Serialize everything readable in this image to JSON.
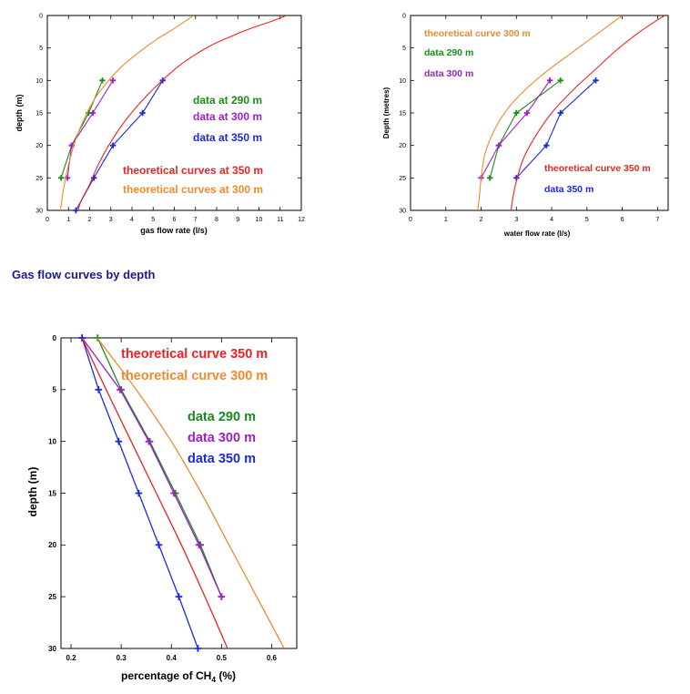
{
  "page": {
    "heading": "Gas flow curves by depth"
  },
  "colors": {
    "theory350": "#ee2222",
    "theory300": "#f08a2c",
    "d290": "#1a8c1a",
    "d300": "#a020c8",
    "d350": "#1a2ae0",
    "axis": "#000000"
  },
  "chart_data": [
    {
      "id": "gas",
      "type": "line",
      "xlabel": "gas flow rate (l/s)",
      "ylabel": "depth (m)",
      "xlim": [
        0,
        12
      ],
      "ylim": [
        0,
        30
      ],
      "y_inverted": true,
      "grid": false,
      "xticks": [
        0,
        1,
        2,
        3,
        4,
        5,
        6,
        7,
        8,
        9,
        10,
        11,
        12
      ],
      "yticks": [
        0,
        5,
        10,
        15,
        20,
        25,
        30
      ],
      "series": [
        {
          "key": "d290",
          "name": "data at 290 m",
          "marker": true,
          "points": [
            [
              2.6,
              10
            ],
            [
              1.95,
              15
            ],
            [
              1.15,
              20
            ],
            [
              0.65,
              25
            ]
          ]
        },
        {
          "key": "d300",
          "name": "data at 300 m",
          "marker": true,
          "points": [
            [
              3.1,
              10
            ],
            [
              2.15,
              15
            ],
            [
              1.15,
              20
            ],
            [
              0.95,
              25
            ]
          ]
        },
        {
          "key": "d350",
          "name": "data at 350 m",
          "marker": true,
          "points": [
            [
              5.45,
              10
            ],
            [
              4.5,
              15
            ],
            [
              3.1,
              20
            ],
            [
              2.2,
              25
            ],
            [
              1.35,
              30
            ]
          ]
        },
        {
          "key": "theory350",
          "name": "theoretical curves at 350 m",
          "marker": false,
          "points": [
            [
              11.3,
              0
            ],
            [
              10.5,
              1
            ],
            [
              9.6,
              2
            ],
            [
              8.7,
              3.2
            ],
            [
              7.8,
              4.5
            ],
            [
              7.0,
              6
            ],
            [
              6.2,
              7.8
            ],
            [
              5.5,
              9.8
            ],
            [
              4.8,
              12
            ],
            [
              4.1,
              14.5
            ],
            [
              3.5,
              17
            ],
            [
              2.9,
              20
            ],
            [
              2.4,
              23
            ],
            [
              2.0,
              26
            ],
            [
              1.6,
              28.5
            ],
            [
              1.45,
              30
            ]
          ]
        },
        {
          "key": "theory300",
          "name": "theoretical curves at 300 m",
          "marker": false,
          "points": [
            [
              6.9,
              0
            ],
            [
              6.1,
              1.8
            ],
            [
              5.2,
              3.6
            ],
            [
              4.4,
              5.5
            ],
            [
              3.6,
              7.6
            ],
            [
              2.9,
              10
            ],
            [
              2.3,
              12.5
            ],
            [
              1.8,
              15.5
            ],
            [
              1.35,
              19
            ],
            [
              1.0,
              23
            ],
            [
              0.75,
              27
            ],
            [
              0.62,
              30
            ]
          ]
        }
      ],
      "labels": [
        {
          "key": "d290",
          "text": "data at 290 m"
        },
        {
          "key": "d300",
          "text": "data at 300 m"
        },
        {
          "key": "d350",
          "text": "data at 350 m"
        },
        {
          "key": "theory350",
          "text": "theoretical curves at 350 m"
        },
        {
          "key": "theory300",
          "text": "theoretical curves at 300 m"
        }
      ]
    },
    {
      "id": "water",
      "type": "line",
      "xlabel": "water flow rate (l/s)",
      "ylabel": "Depth (metres)",
      "xlim": [
        0,
        7.3
      ],
      "ylim": [
        0,
        30
      ],
      "y_inverted": true,
      "grid": false,
      "xticks": [
        0,
        1,
        2,
        3,
        4,
        5,
        6,
        7
      ],
      "yticks": [
        0,
        5,
        10,
        15,
        20,
        25,
        30
      ],
      "series": [
        {
          "key": "d290",
          "name": "data 290 m",
          "marker": true,
          "points": [
            [
              4.25,
              10
            ],
            [
              3.0,
              15
            ],
            [
              2.5,
              20
            ],
            [
              2.25,
              25
            ]
          ]
        },
        {
          "key": "d300",
          "name": "data 300 m",
          "marker": true,
          "points": [
            [
              3.95,
              10
            ],
            [
              3.3,
              15
            ],
            [
              2.5,
              20
            ],
            [
              2.0,
              25
            ]
          ]
        },
        {
          "key": "d350",
          "name": "data 350 m",
          "marker": true,
          "points": [
            [
              5.25,
              10
            ],
            [
              4.25,
              15
            ],
            [
              3.85,
              20
            ],
            [
              3.0,
              25
            ]
          ]
        },
        {
          "key": "theory350",
          "name": "theoretical curve 350 m",
          "marker": false,
          "points": [
            [
              7.2,
              0
            ],
            [
              6.5,
              2.5
            ],
            [
              5.8,
              5.5
            ],
            [
              5.2,
              8.5
            ],
            [
              4.6,
              11.5
            ],
            [
              4.0,
              15
            ],
            [
              3.55,
              18.5
            ],
            [
              3.2,
              22
            ],
            [
              3.0,
              25.5
            ],
            [
              2.9,
              28
            ],
            [
              2.85,
              30
            ]
          ]
        },
        {
          "key": "theory300",
          "name": "theoretical curve 300 m",
          "marker": false,
          "points": [
            [
              6.0,
              0
            ],
            [
              5.5,
              2
            ],
            [
              5.0,
              4
            ],
            [
              4.5,
              6
            ],
            [
              4.0,
              8
            ],
            [
              3.5,
              10.2
            ],
            [
              3.0,
              12.8
            ],
            [
              2.6,
              15.5
            ],
            [
              2.3,
              18.5
            ],
            [
              2.1,
              21.5
            ],
            [
              2.0,
              25
            ],
            [
              1.95,
              28
            ],
            [
              1.9,
              30
            ]
          ]
        }
      ],
      "labels": [
        {
          "key": "theory300",
          "text": "theoretical curve 300 m"
        },
        {
          "key": "d290",
          "text": "data 290 m"
        },
        {
          "key": "d300",
          "text": "data 300 m"
        },
        {
          "key": "theory350",
          "text": "theoretical curve 350 m"
        },
        {
          "key": "d350",
          "text": "data 350 m"
        }
      ]
    },
    {
      "id": "ch4",
      "type": "line",
      "xlabel": "percentage of CH",
      "xlabel_sub": "4",
      "xlabel_suffix": " (%)",
      "ylabel": "depth (m)",
      "xlim": [
        0.18,
        0.65
      ],
      "ylim": [
        0,
        30
      ],
      "y_inverted": true,
      "grid": false,
      "xticks": [
        0.2,
        0.3,
        0.4,
        0.5,
        0.6
      ],
      "yticks": [
        0,
        5,
        10,
        15,
        20,
        25,
        30
      ],
      "series": [
        {
          "key": "d290",
          "name": "data 290 m",
          "marker": true,
          "points": [
            [
              0.253,
              0
            ],
            [
              0.3,
              5
            ],
            [
              0.357,
              10
            ],
            [
              0.408,
              15
            ],
            [
              0.458,
              20
            ],
            [
              0.5,
              25
            ]
          ]
        },
        {
          "key": "d300",
          "name": "data 300 m",
          "marker": true,
          "points": [
            [
              0.222,
              0
            ],
            [
              0.298,
              5
            ],
            [
              0.355,
              10
            ],
            [
              0.405,
              15
            ],
            [
              0.455,
              20
            ],
            [
              0.5,
              25
            ]
          ]
        },
        {
          "key": "d350",
          "name": "data 350 m",
          "marker": true,
          "points": [
            [
              0.222,
              0
            ],
            [
              0.255,
              5
            ],
            [
              0.295,
              10
            ],
            [
              0.335,
              15
            ],
            [
              0.375,
              20
            ],
            [
              0.415,
              25
            ],
            [
              0.453,
              30
            ]
          ]
        },
        {
          "key": "theory350",
          "name": "theoretical curve 350 m",
          "marker": false,
          "points": [
            [
              0.222,
              0
            ],
            [
              0.27,
              5
            ],
            [
              0.32,
              10
            ],
            [
              0.37,
              15
            ],
            [
              0.42,
              20
            ],
            [
              0.467,
              25
            ],
            [
              0.512,
              30
            ]
          ]
        },
        {
          "key": "theory300",
          "name": "theoretical curve 300 m",
          "marker": false,
          "points": [
            [
              0.252,
              0
            ],
            [
              0.33,
              5
            ],
            [
              0.4,
              10
            ],
            [
              0.46,
              15
            ],
            [
              0.515,
              20
            ],
            [
              0.57,
              25
            ],
            [
              0.625,
              30
            ]
          ]
        }
      ],
      "labels": [
        {
          "key": "theory350",
          "text": "theoretical curve 350 m"
        },
        {
          "key": "theory300",
          "text": "theoretical curve 300 m"
        },
        {
          "key": "d290",
          "text": "data 290 m"
        },
        {
          "key": "d300",
          "text": "data 300 m"
        },
        {
          "key": "d350",
          "text": "data 350 m"
        }
      ]
    }
  ]
}
